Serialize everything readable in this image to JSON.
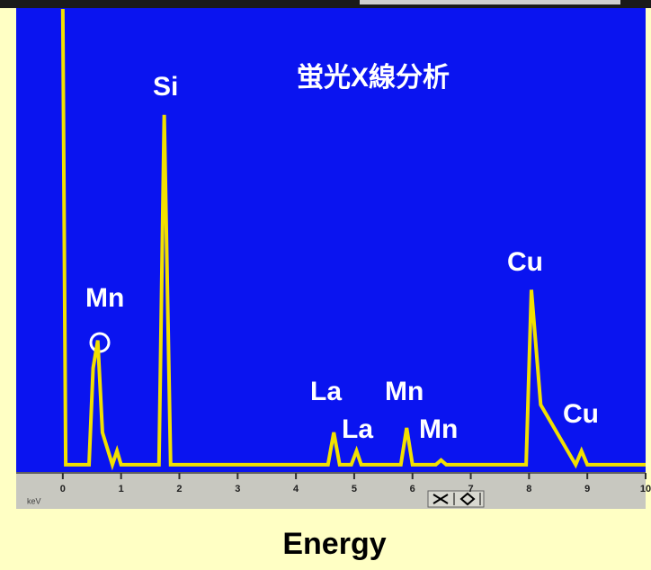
{
  "chart_data": {
    "type": "line",
    "title": "蛍光X線分析",
    "x_label": "Energy",
    "x_unit": "keV",
    "annotations": [
      "Si",
      "Mn",
      "La",
      "La",
      "Mn",
      "Mn",
      "Cu",
      "Cu"
    ],
    "x": [
      0,
      0.05,
      0.45,
      0.52,
      0.6,
      0.68,
      0.85,
      0.93,
      1.0,
      1.65,
      1.74,
      1.85,
      4.55,
      4.65,
      4.75,
      4.95,
      5.04,
      5.12,
      5.8,
      5.9,
      6.0,
      6.4,
      6.49,
      6.58,
      7.95,
      8.04,
      8.2,
      8.8,
      8.9,
      9.0,
      10
    ],
    "series": [
      {
        "color": "#f2e000",
        "values": [
          100,
          1,
          1,
          22,
          28,
          8,
          1,
          4,
          1,
          1,
          77,
          1,
          1,
          8,
          1,
          1,
          4,
          1,
          1,
          9,
          1,
          1,
          2,
          1,
          1,
          39,
          14,
          1,
          4,
          1,
          1
        ]
      }
    ],
    "xlim": [
      -0.8,
      10
    ],
    "xticks": [
      0,
      1,
      2,
      3,
      4,
      5,
      6,
      7,
      8,
      9,
      10
    ],
    "ylim": [
      0,
      100
    ]
  }
}
